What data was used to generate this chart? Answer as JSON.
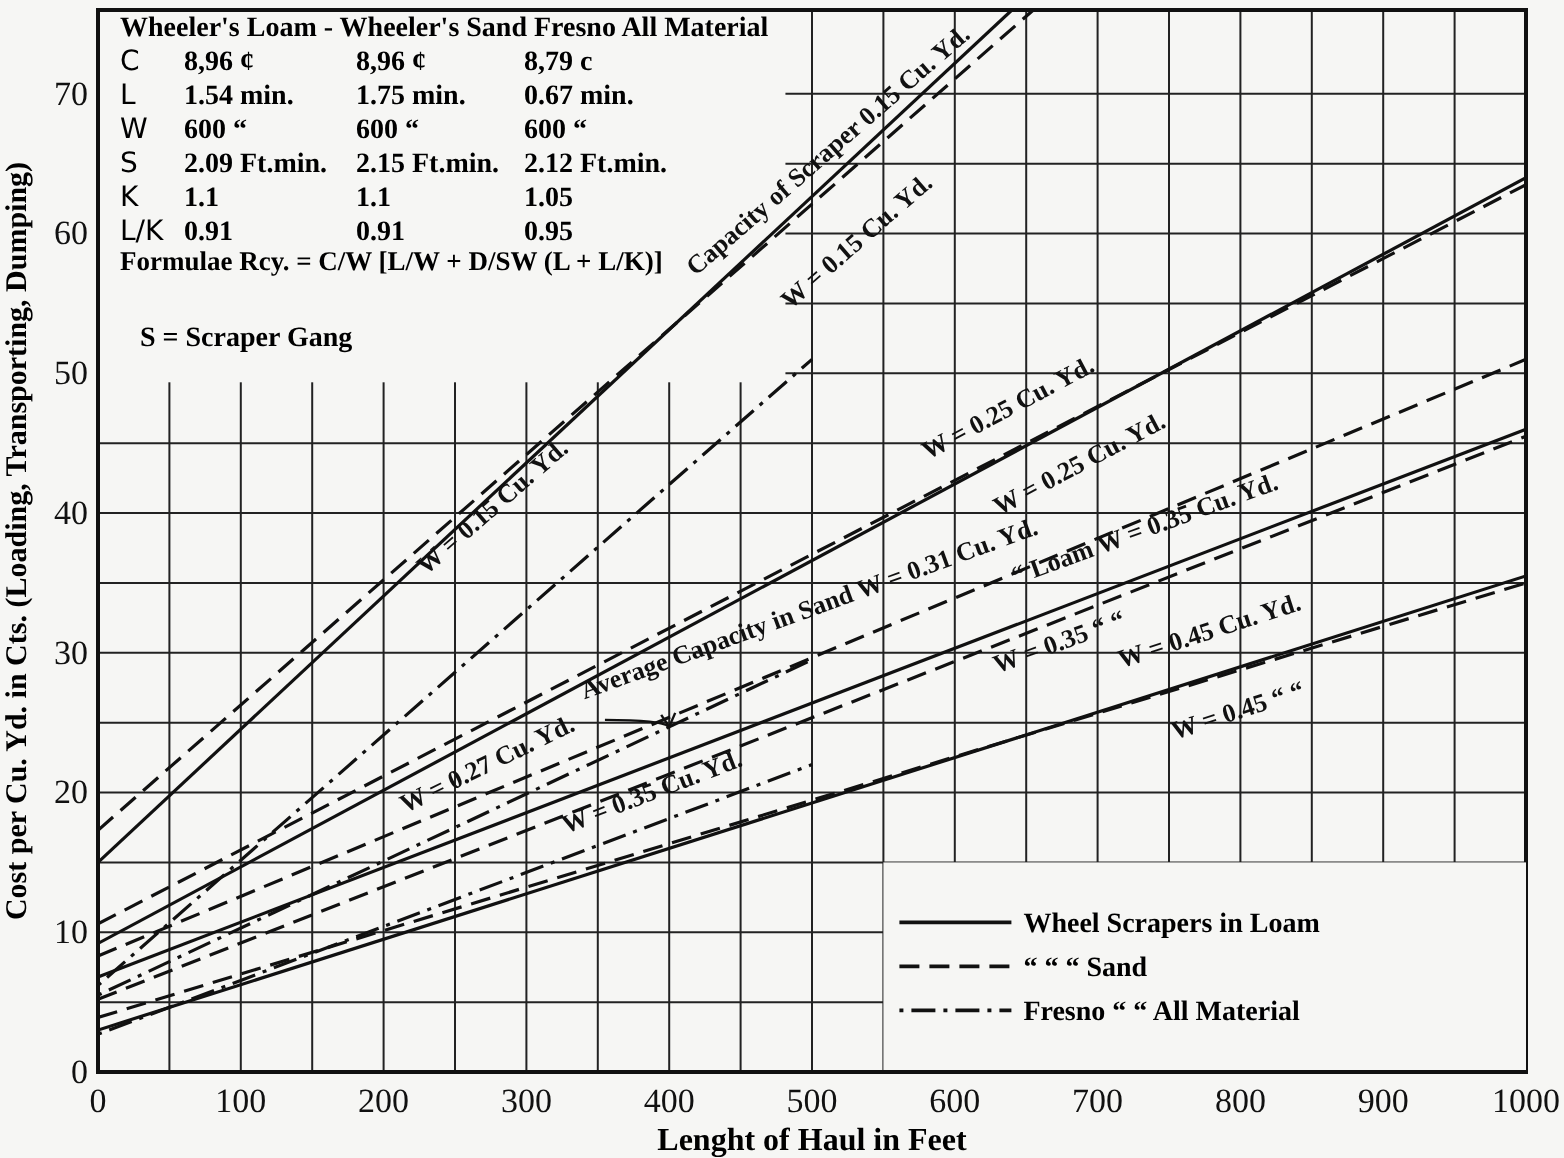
{
  "chart_data": {
    "type": "line",
    "xlabel": "Lenght of Haul in Feet",
    "ylabel": "Cost per Cu. Yd. in Cts. (Loading, Transporting, Dumping)",
    "xlim": [
      0,
      1000
    ],
    "ylim": [
      0,
      76
    ],
    "xticks": [
      0,
      {
        "value": 50,
        "label": null
      },
      100,
      {
        "value": 150,
        "label": null
      },
      200,
      {
        "value": 250,
        "label": null
      },
      300,
      {
        "value": 350,
        "label": null
      },
      400,
      {
        "value": 450,
        "label": null
      },
      500,
      {
        "value": 550,
        "label": null
      },
      600,
      {
        "value": 650,
        "label": null
      },
      700,
      {
        "value": 750,
        "label": null
      },
      800,
      {
        "value": 850,
        "label": null
      },
      900,
      {
        "value": 950,
        "label": null
      },
      1000
    ],
    "yticks": [
      0,
      {
        "value": 5,
        "label": null
      },
      10,
      {
        "value": 15,
        "label": null
      },
      20,
      {
        "value": 25,
        "label": null
      },
      30,
      {
        "value": 35,
        "label": null
      },
      40,
      {
        "value": 45,
        "label": null
      },
      50,
      {
        "value": 55,
        "label": null
      },
      60,
      {
        "value": 65,
        "label": null
      },
      70
    ],
    "grid": true,
    "legend": "bottom right",
    "marker": "none",
    "series": [
      {
        "name": "Wheel Scrapers in Loam",
        "color": "#111111",
        "line_style": "solid",
        "x": [
          0,
          640
        ],
        "values": [
          15,
          76
        ]
      },
      {
        "name": "“ “ “ Sand",
        "color": "#111111",
        "line_style": "dashed",
        "x": [
          0,
          655
        ],
        "values": [
          17.3,
          76
        ]
      },
      {
        "name": "Fresno “ “ All Material",
        "color": "#111111",
        "line_style": "dashdot",
        "x": [
          0,
          500
        ],
        "values": [
          6.2,
          51
        ]
      },
      {
        "color": "#111111",
        "line_style": "solid",
        "x": [
          0,
          1000
        ],
        "values": [
          9.2,
          64
        ]
      },
      {
        "color": "#111111",
        "line_style": "dashed",
        "x": [
          0,
          1000
        ],
        "values": [
          10.6,
          63.5
        ]
      },
      {
        "color": "#111111",
        "line_style": "dashed",
        "x": [
          0,
          1000
        ],
        "values": [
          8.3,
          51
        ]
      },
      {
        "color": "#111111",
        "line_style": "solid",
        "x": [
          0,
          1000
        ],
        "values": [
          6.8,
          46
        ]
      },
      {
        "color": "#111111",
        "line_style": "dashed",
        "x": [
          0,
          1000
        ],
        "values": [
          5.2,
          45.5
        ]
      },
      {
        "color": "#111111",
        "line_style": "dashdot",
        "x": [
          0,
          500
        ],
        "values": [
          5.5,
          29.5
        ]
      },
      {
        "color": "#111111",
        "line_style": "dashdot",
        "x": [
          0,
          500
        ],
        "values": [
          2.7,
          22
        ]
      },
      {
        "color": "#111111",
        "line_style": "solid",
        "x": [
          0,
          1000
        ],
        "values": [
          3,
          35.5
        ]
      },
      {
        "color": "#111111",
        "line_style": "dashed",
        "x": [
          0,
          1000
        ],
        "values": [
          3.9,
          35
        ]
      }
    ],
    "annotations": [
      "Wheeler's Loam - Wheeler's Sand Fresno All Material",
      "C\t8,96 ¢\t8,96 ¢\t8,79 c",
      "L\t1.54 min.\t1.75 min.\t0.67 min.",
      "W\t600 “\t600 “\t600 “",
      "S\t2.09 Ft.min.\t2.15 Ft.min.\t2.12 Ft.min.",
      "K\t1.1\t1.1\t1.05",
      "L/K\t0.91\t0.91\t0.95",
      "Formulae Rcy. = C/W [L/W + D/SW (L + L/K)]",
      "S = Scraper Gang",
      "Capacity of Scraper 0.15 Cu. Yd.",
      "W = 0.15 Cu. Yd.",
      "W = 0.15 Cu. Yd.",
      "W = 0.25 Cu. Yd.",
      "W = 0.25 Cu. Yd.",
      "Average Capacity in Sand W = 0.31 Cu. Yd.",
      "“ Loam W = 0.35 Cu. Yd.",
      "W = 0.35 “ “",
      "W = 0.27 Cu. Yd.",
      "W = 0.35 Cu. Yd.",
      "W = 0.45 Cu. Yd.",
      "W = 0.45 “ “"
    ]
  }
}
